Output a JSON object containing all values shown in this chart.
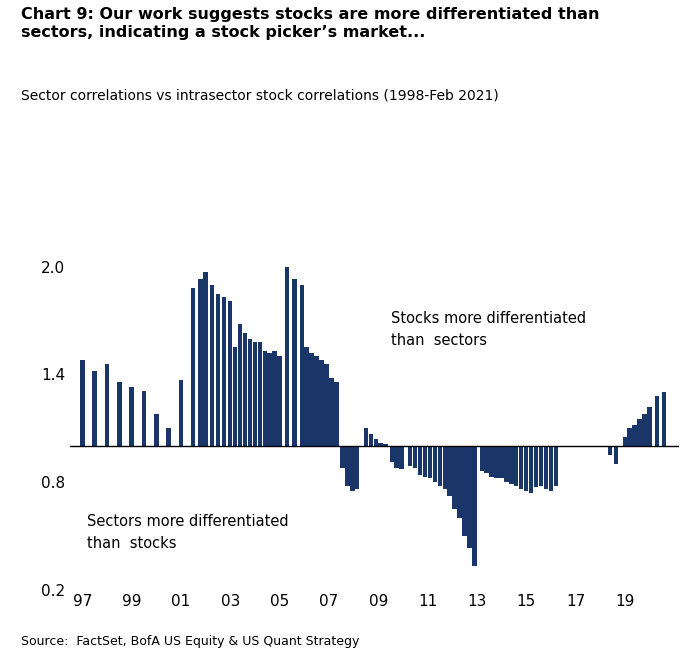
{
  "title_bold": "Chart 9: Our work suggests stocks are more differentiated than\nsectors, indicating a stock picker’s market...",
  "subtitle": "Sector correlations vs intrasector stock correlations (1998-Feb 2021)",
  "source": "Source:  FactSet, BofA US Equity & US Quant Strategy",
  "bar_color": "#1a3668",
  "baseline": 1.0,
  "ylim": [
    0.2,
    2.1
  ],
  "yticks": [
    0.2,
    0.8,
    1.4,
    2.0
  ],
  "xtick_labels": [
    "97",
    "99",
    "01",
    "03",
    "05",
    "07",
    "09",
    "11",
    "13",
    "15",
    "17",
    "19"
  ],
  "xtick_positions": [
    1997,
    1999,
    2001,
    2003,
    2005,
    2007,
    2009,
    2011,
    2013,
    2015,
    2017,
    2019
  ],
  "annotation_above": "Stocks more differentiated\nthan  sectors",
  "annotation_below": "Sectors more differentiated\nthan  stocks",
  "bar_data": [
    [
      1997.0,
      1.48
    ],
    [
      1997.5,
      1.42
    ],
    [
      1998.0,
      1.46
    ],
    [
      1998.5,
      1.36
    ],
    [
      1999.0,
      1.33
    ],
    [
      1999.5,
      1.31
    ],
    [
      2000.0,
      1.18
    ],
    [
      2000.5,
      1.1
    ],
    [
      2001.0,
      1.37
    ],
    [
      2001.5,
      1.88
    ],
    [
      2001.8,
      1.93
    ],
    [
      2002.0,
      1.97
    ],
    [
      2002.25,
      1.9
    ],
    [
      2002.5,
      1.85
    ],
    [
      2002.75,
      1.83
    ],
    [
      2003.0,
      1.81
    ],
    [
      2003.2,
      1.55
    ],
    [
      2003.4,
      1.68
    ],
    [
      2003.6,
      1.63
    ],
    [
      2003.8,
      1.6
    ],
    [
      2004.0,
      1.58
    ],
    [
      2004.2,
      1.58
    ],
    [
      2004.4,
      1.53
    ],
    [
      2004.6,
      1.52
    ],
    [
      2004.8,
      1.53
    ],
    [
      2005.0,
      1.5
    ],
    [
      2005.3,
      2.0
    ],
    [
      2005.6,
      1.93
    ],
    [
      2005.9,
      1.9
    ],
    [
      2006.1,
      1.55
    ],
    [
      2006.3,
      1.52
    ],
    [
      2006.5,
      1.5
    ],
    [
      2006.7,
      1.48
    ],
    [
      2006.9,
      1.46
    ],
    [
      2007.1,
      1.38
    ],
    [
      2007.3,
      1.36
    ],
    [
      2007.55,
      0.88
    ],
    [
      2007.75,
      0.78
    ],
    [
      2007.95,
      0.75
    ],
    [
      2008.15,
      0.76
    ],
    [
      2008.5,
      1.1
    ],
    [
      2008.7,
      1.07
    ],
    [
      2008.9,
      1.04
    ],
    [
      2009.1,
      1.02
    ],
    [
      2009.3,
      1.01
    ],
    [
      2009.55,
      0.91
    ],
    [
      2009.75,
      0.88
    ],
    [
      2009.95,
      0.87
    ],
    [
      2010.3,
      0.89
    ],
    [
      2010.5,
      0.88
    ],
    [
      2010.7,
      0.84
    ],
    [
      2010.9,
      0.83
    ],
    [
      2011.1,
      0.82
    ],
    [
      2011.3,
      0.8
    ],
    [
      2011.5,
      0.78
    ],
    [
      2011.7,
      0.76
    ],
    [
      2011.9,
      0.72
    ],
    [
      2012.1,
      0.65
    ],
    [
      2012.3,
      0.6
    ],
    [
      2012.5,
      0.5
    ],
    [
      2012.7,
      0.43
    ],
    [
      2012.9,
      0.33
    ],
    [
      2013.2,
      0.86
    ],
    [
      2013.4,
      0.85
    ],
    [
      2013.6,
      0.83
    ],
    [
      2013.8,
      0.82
    ],
    [
      2014.0,
      0.82
    ],
    [
      2014.2,
      0.8
    ],
    [
      2014.4,
      0.79
    ],
    [
      2014.6,
      0.78
    ],
    [
      2014.8,
      0.76
    ],
    [
      2015.0,
      0.75
    ],
    [
      2015.2,
      0.74
    ],
    [
      2015.4,
      0.77
    ],
    [
      2015.6,
      0.78
    ],
    [
      2015.8,
      0.76
    ],
    [
      2016.0,
      0.75
    ],
    [
      2016.2,
      0.78
    ],
    [
      2018.4,
      0.95
    ],
    [
      2018.65,
      0.9
    ],
    [
      2019.0,
      1.05
    ],
    [
      2019.2,
      1.1
    ],
    [
      2019.4,
      1.12
    ],
    [
      2019.6,
      1.15
    ],
    [
      2019.8,
      1.18
    ],
    [
      2020.0,
      1.22
    ],
    [
      2020.3,
      1.28
    ],
    [
      2020.6,
      1.3
    ]
  ]
}
